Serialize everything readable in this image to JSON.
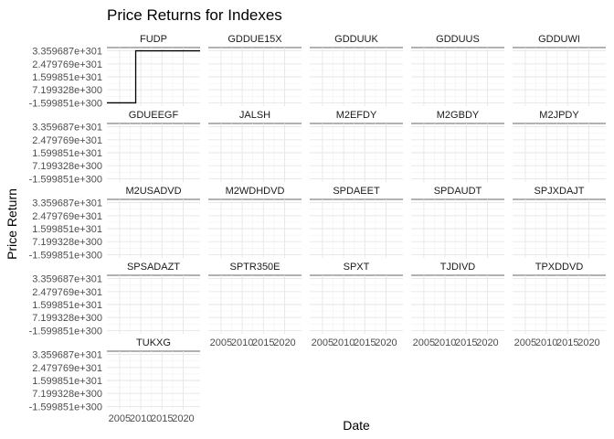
{
  "chart_data": {
    "type": "line",
    "title": "Price Returns for Indexes",
    "xlabel": "Date",
    "ylabel": "Price Return",
    "x_ticks": [
      "2005",
      "2010",
      "2015",
      "2020"
    ],
    "x_tick_values": [
      2005,
      2010,
      2015,
      2020
    ],
    "xlim": [
      2002,
      2024
    ],
    "y_ticks": [
      "3.359687e+301",
      "2.479769e+301",
      "1.599851e+301",
      "7.199328e+300",
      "-1.599851e+300"
    ],
    "y_tick_values": [
      33.59687,
      24.79769,
      15.99851,
      7.199328,
      -1.599851
    ],
    "y_scale_note": "values in units of 1e+300",
    "ylim": [
      -3.8,
      35.8
    ],
    "grid": true,
    "facet_columns": 5,
    "panels": [
      {
        "name": "FUDP",
        "x": [
          2002,
          2008.8,
          2008.8,
          2024
        ],
        "y": [
          -1.599851,
          -1.599851,
          33.59687,
          33.59687
        ]
      },
      {
        "name": "GDDUE15X",
        "x": [],
        "y": []
      },
      {
        "name": "GDDUUK",
        "x": [],
        "y": []
      },
      {
        "name": "GDDUUS",
        "x": [],
        "y": []
      },
      {
        "name": "GDDUWI",
        "x": [],
        "y": []
      },
      {
        "name": "GDUEEGF",
        "x": [],
        "y": []
      },
      {
        "name": "JALSH",
        "x": [],
        "y": []
      },
      {
        "name": "M2EFDY",
        "x": [],
        "y": []
      },
      {
        "name": "M2GBDY",
        "x": [],
        "y": []
      },
      {
        "name": "M2JPDY",
        "x": [],
        "y": []
      },
      {
        "name": "M2USADVD",
        "x": [],
        "y": []
      },
      {
        "name": "M2WDHDVD",
        "x": [],
        "y": []
      },
      {
        "name": "SPDAEET",
        "x": [],
        "y": []
      },
      {
        "name": "SPDAUDT",
        "x": [],
        "y": []
      },
      {
        "name": "SPJXDAJT",
        "x": [],
        "y": []
      },
      {
        "name": "SPSADAZT",
        "x": [],
        "y": []
      },
      {
        "name": "SPTR350E",
        "x": [],
        "y": []
      },
      {
        "name": "SPXT",
        "x": [],
        "y": []
      },
      {
        "name": "TJDIVD",
        "x": [],
        "y": []
      },
      {
        "name": "TPXDDVD",
        "x": [],
        "y": []
      },
      {
        "name": "TUKXG",
        "x": [],
        "y": []
      }
    ]
  }
}
